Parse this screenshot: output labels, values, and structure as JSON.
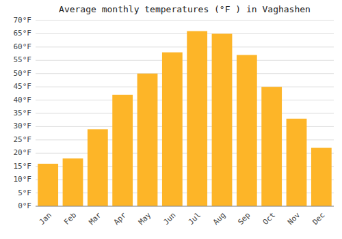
{
  "chart_data": {
    "type": "bar",
    "title": "Average monthly temperatures (°F ) in Vaghashen",
    "categories": [
      "Jan",
      "Feb",
      "Mar",
      "Apr",
      "May",
      "Jun",
      "Jul",
      "Aug",
      "Sep",
      "Oct",
      "Nov",
      "Dec"
    ],
    "values": [
      16,
      18,
      29,
      42,
      50,
      58,
      66,
      65,
      57,
      45,
      33,
      22
    ],
    "color": "#FDB528",
    "ylim": [
      0,
      70
    ],
    "yticks": [
      {
        "value": 0,
        "label": "0°F"
      },
      {
        "value": 5,
        "label": "5°F"
      },
      {
        "value": 10,
        "label": "10°F"
      },
      {
        "value": 15,
        "label": "15°F"
      },
      {
        "value": 20,
        "label": "20°F"
      },
      {
        "value": 25,
        "label": "25°F"
      },
      {
        "value": 30,
        "label": "30°F"
      },
      {
        "value": 35,
        "label": "35°F"
      },
      {
        "value": 40,
        "label": "40°F"
      },
      {
        "value": 45,
        "label": "45°F"
      },
      {
        "value": 50,
        "label": "50°F"
      },
      {
        "value": 55,
        "label": "55°F"
      },
      {
        "value": 60,
        "label": "60°F"
      },
      {
        "value": 65,
        "label": "65°F"
      },
      {
        "value": 70,
        "label": "70°F"
      }
    ],
    "grid": true
  }
}
